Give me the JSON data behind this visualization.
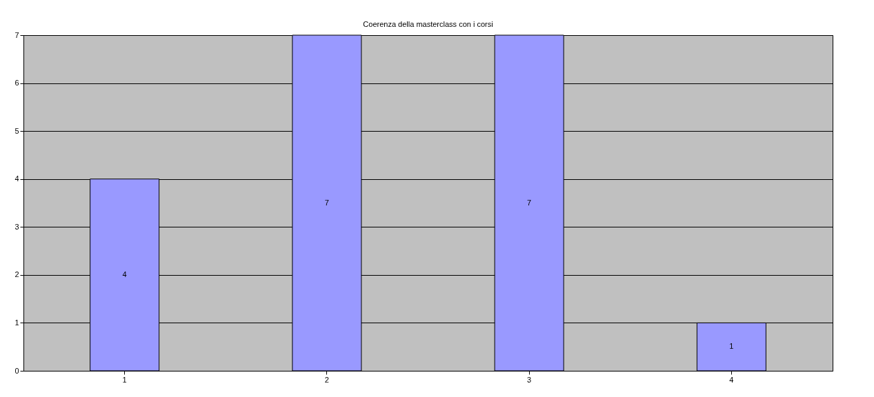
{
  "chart_data": {
    "type": "bar",
    "title": "Coerenza della masterclass con i corsi",
    "categories": [
      "1",
      "2",
      "3",
      "4"
    ],
    "values": [
      4,
      7,
      7,
      1
    ],
    "color": "#9999ff",
    "ylim": [
      0,
      7
    ],
    "yticks": [
      0,
      1,
      2,
      3,
      4,
      5,
      6,
      7
    ],
    "grid": "y",
    "data_labels": true
  }
}
